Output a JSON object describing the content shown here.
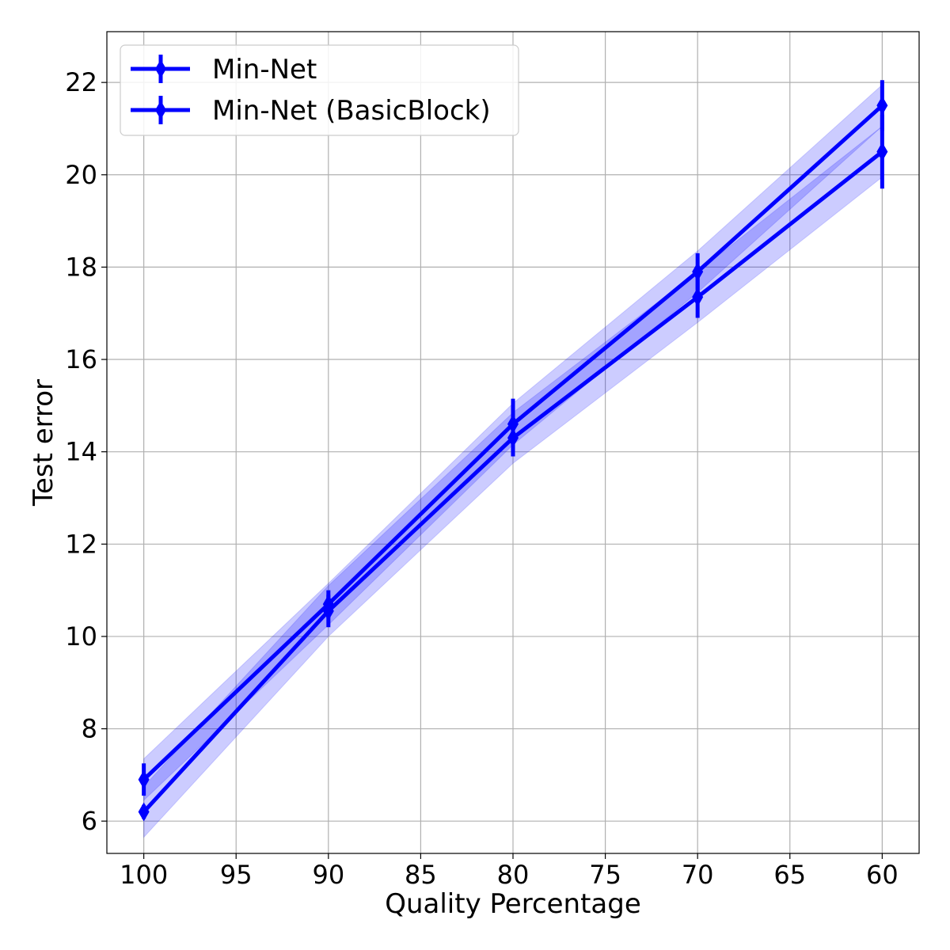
{
  "chart_data": {
    "type": "line",
    "xlabel": "Quality Percentage",
    "ylabel": "Test error",
    "x": [
      100,
      90,
      80,
      70,
      60
    ],
    "xlim": [
      102,
      58
    ],
    "ylim": [
      5.3,
      23.1
    ],
    "x_ticks": [
      100,
      95,
      90,
      85,
      80,
      75,
      70,
      65,
      60
    ],
    "y_ticks": [
      6,
      8,
      10,
      12,
      14,
      16,
      18,
      20,
      22
    ],
    "x_reversed": true,
    "grid": true,
    "legend_position": "top-left",
    "series": [
      {
        "name": "Min-Net",
        "color": "#0000ff",
        "values": [
          6.9,
          10.7,
          14.6,
          17.9,
          21.5
        ],
        "errors": [
          0.35,
          0.3,
          0.55,
          0.4,
          0.55
        ],
        "band": 0.45,
        "marker": "diamond"
      },
      {
        "name": "Min-Net (BasicBlock)",
        "color": "#0000ff",
        "values": [
          6.2,
          10.55,
          14.3,
          17.35,
          20.5
        ],
        "errors": [
          0.15,
          0.35,
          0.4,
          0.45,
          0.8
        ],
        "band": 0.55,
        "marker": "diamond"
      }
    ]
  }
}
